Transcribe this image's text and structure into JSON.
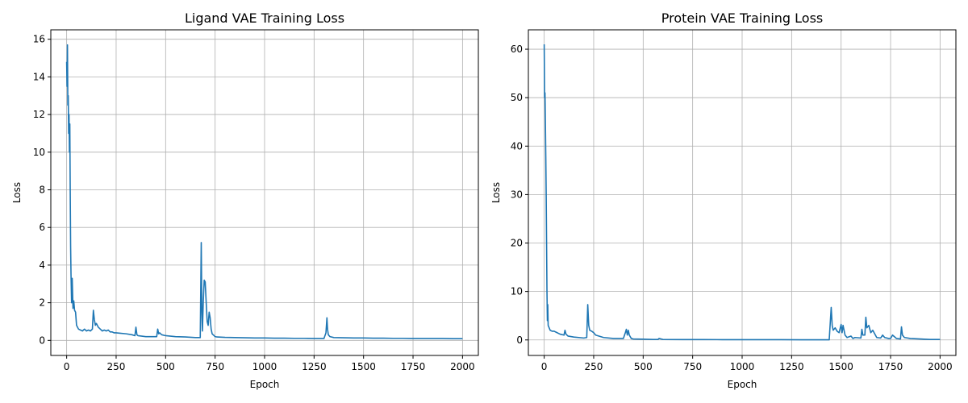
{
  "chart_data": [
    {
      "type": "line",
      "title": "Ligand VAE Training Loss",
      "xlabel": "Epoch",
      "ylabel": "Loss",
      "xlim": [
        -80,
        2080
      ],
      "ylim": [
        -0.8,
        16.5
      ],
      "xticks": [
        0,
        250,
        500,
        750,
        1000,
        1250,
        1500,
        1750,
        2000
      ],
      "yticks": [
        0,
        2,
        4,
        6,
        8,
        10,
        12,
        14,
        16
      ],
      "grid": true,
      "color": "#1f77b4",
      "series": [
        {
          "x": [
            0,
            2,
            4,
            6,
            8,
            10,
            12,
            14,
            16,
            18,
            20,
            22,
            25,
            28,
            32,
            36,
            40,
            45,
            50,
            60,
            70,
            80,
            90,
            100,
            110,
            120,
            130,
            135,
            140,
            145,
            150,
            160,
            170,
            180,
            190,
            200,
            210,
            220,
            230,
            240,
            250,
            270,
            300,
            330,
            345,
            350,
            355,
            360,
            400,
            440,
            455,
            460,
            465,
            470,
            480,
            500,
            550,
            600,
            650,
            675,
            680,
            683,
            686,
            690,
            695,
            700,
            705,
            710,
            715,
            720,
            725,
            730,
            735,
            740,
            745,
            750,
            760,
            780,
            800,
            850,
            900,
            950,
            1000,
            1050,
            1100,
            1150,
            1200,
            1250,
            1300,
            1310,
            1315,
            1318,
            1322,
            1330,
            1350,
            1400,
            1450,
            1500,
            1550,
            1600,
            1650,
            1700,
            1750,
            1800,
            1850,
            1900,
            1950,
            2000
          ],
          "y": [
            14.8,
            13.5,
            15.7,
            12.5,
            13.0,
            11.0,
            12.0,
            10.0,
            11.5,
            8.0,
            5.0,
            3.5,
            2.0,
            3.3,
            1.7,
            2.1,
            1.6,
            1.5,
            0.8,
            0.6,
            0.55,
            0.5,
            0.6,
            0.5,
            0.55,
            0.5,
            0.6,
            1.6,
            1.1,
            0.8,
            0.9,
            0.7,
            0.6,
            0.5,
            0.55,
            0.5,
            0.55,
            0.45,
            0.45,
            0.4,
            0.4,
            0.38,
            0.35,
            0.3,
            0.25,
            0.7,
            0.3,
            0.25,
            0.2,
            0.2,
            0.2,
            0.6,
            0.35,
            0.4,
            0.3,
            0.25,
            0.2,
            0.18,
            0.15,
            0.15,
            5.2,
            1.5,
            0.5,
            2.0,
            3.2,
            3.1,
            2.0,
            1.0,
            0.8,
            1.5,
            1.2,
            0.6,
            0.35,
            0.3,
            0.25,
            0.2,
            0.18,
            0.17,
            0.16,
            0.15,
            0.14,
            0.13,
            0.13,
            0.12,
            0.12,
            0.11,
            0.11,
            0.1,
            0.1,
            0.4,
            1.2,
            0.6,
            0.3,
            0.2,
            0.15,
            0.14,
            0.13,
            0.13,
            0.12,
            0.12,
            0.11,
            0.11,
            0.1,
            0.1,
            0.1,
            0.1,
            0.09,
            0.09
          ]
        }
      ]
    },
    {
      "type": "line",
      "title": "Protein VAE Training Loss",
      "xlabel": "Epoch",
      "ylabel": "Loss",
      "xlim": [
        -80,
        2080
      ],
      "ylim": [
        -3.2,
        64.0
      ],
      "xticks": [
        0,
        250,
        500,
        750,
        1000,
        1250,
        1500,
        1750,
        2000
      ],
      "yticks": [
        0,
        10,
        20,
        30,
        40,
        50,
        60
      ],
      "grid": true,
      "color": "#1f77b4",
      "series": [
        {
          "x": [
            0,
            2,
            4,
            6,
            8,
            10,
            12,
            14,
            16,
            18,
            20,
            25,
            30,
            40,
            50,
            60,
            80,
            100,
            105,
            110,
            120,
            150,
            200,
            215,
            220,
            225,
            230,
            240,
            250,
            260,
            300,
            350,
            400,
            410,
            415,
            420,
            425,
            430,
            440,
            450,
            500,
            550,
            575,
            580,
            600,
            700,
            800,
            900,
            1000,
            1100,
            1200,
            1300,
            1400,
            1440,
            1450,
            1455,
            1460,
            1470,
            1480,
            1490,
            1500,
            1505,
            1510,
            1520,
            1530,
            1550,
            1560,
            1570,
            1600,
            1605,
            1610,
            1620,
            1625,
            1630,
            1640,
            1650,
            1660,
            1680,
            1700,
            1710,
            1720,
            1740,
            1750,
            1760,
            1780,
            1800,
            1805,
            1810,
            1820,
            1850,
            1900,
            1950,
            2000
          ],
          "y": [
            61.0,
            50.0,
            51.0,
            45.0,
            38.0,
            30.0,
            20.0,
            10.0,
            4.0,
            7.3,
            3.0,
            2.5,
            2.0,
            1.8,
            1.8,
            1.6,
            1.2,
            1.0,
            2.0,
            1.2,
            0.8,
            0.6,
            0.4,
            0.5,
            7.3,
            3.0,
            2.0,
            1.8,
            1.5,
            1.0,
            0.5,
            0.3,
            0.3,
            1.5,
            2.2,
            1.0,
            2.0,
            1.0,
            0.3,
            0.2,
            0.15,
            0.1,
            0.1,
            0.3,
            0.1,
            0.08,
            0.07,
            0.06,
            0.05,
            0.05,
            0.05,
            0.04,
            0.04,
            0.04,
            6.7,
            3.0,
            2.0,
            2.5,
            1.8,
            1.5,
            3.2,
            1.5,
            3.0,
            1.0,
            0.5,
            0.8,
            0.3,
            0.5,
            0.4,
            2.2,
            1.0,
            1.0,
            4.7,
            2.5,
            3.0,
            1.5,
            2.0,
            0.5,
            0.4,
            1.0,
            0.5,
            0.3,
            0.3,
            1.0,
            0.3,
            0.2,
            2.7,
            1.0,
            0.5,
            0.3,
            0.2,
            0.1,
            0.1
          ]
        }
      ]
    }
  ]
}
